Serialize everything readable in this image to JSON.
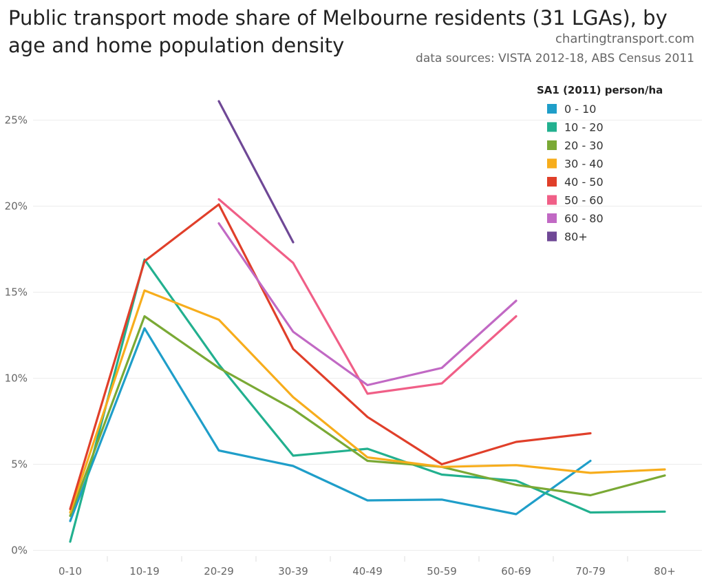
{
  "header": {
    "title": "Public transport mode share of Melbourne residents (31 LGAs), by age and home population density",
    "site": "chartingtransport.com",
    "sources": "data sources: VISTA 2012-18, ABS Census 2011"
  },
  "chart_data": {
    "type": "line",
    "title": "Public transport mode share of Melbourne residents (31 LGAs), by age and home population density",
    "xlabel": "",
    "ylabel": "",
    "categories": [
      "0-10",
      "10-19",
      "20-29",
      "30-39",
      "40-49",
      "50-59",
      "60-69",
      "70-79",
      "80+"
    ],
    "yticks": [
      0,
      5,
      10,
      15,
      20,
      25
    ],
    "ytick_labels": [
      "0%",
      "5%",
      "10%",
      "15%",
      "20%",
      "25%"
    ],
    "ylim": [
      -0.5,
      27.5
    ],
    "grid": true,
    "legend_title": "SA1 (2011) person/ha",
    "legend_position": "top-right",
    "series": [
      {
        "name": "0 - 10",
        "color": "#1f9ec9",
        "values": [
          1.7,
          12.9,
          5.8,
          4.9,
          2.9,
          2.95,
          2.1,
          5.2,
          null
        ]
      },
      {
        "name": "10 - 20",
        "color": "#22b08f",
        "values": [
          0.5,
          16.9,
          10.8,
          5.5,
          5.9,
          4.4,
          4.05,
          2.2,
          2.25
        ]
      },
      {
        "name": "20 - 30",
        "color": "#7aa935",
        "values": [
          2.0,
          13.6,
          10.6,
          8.2,
          5.2,
          4.85,
          3.8,
          3.2,
          4.35
        ]
      },
      {
        "name": "30 - 40",
        "color": "#f7ad1c",
        "values": [
          2.2,
          15.1,
          13.4,
          8.9,
          5.4,
          4.85,
          4.95,
          4.5,
          4.7
        ]
      },
      {
        "name": "40 - 50",
        "color": "#e03f2a",
        "values": [
          2.4,
          16.8,
          20.1,
          11.7,
          7.75,
          5.0,
          6.3,
          6.8,
          null
        ]
      },
      {
        "name": "50 - 60",
        "color": "#f05f87",
        "values": [
          null,
          null,
          20.4,
          16.7,
          9.1,
          9.7,
          13.6,
          null,
          null
        ]
      },
      {
        "name": "60 - 80",
        "color": "#c169c4",
        "values": [
          null,
          null,
          19.0,
          12.7,
          9.6,
          10.6,
          14.5,
          null,
          null
        ]
      },
      {
        "name": "80+",
        "color": "#6f4896",
        "values": [
          null,
          null,
          26.1,
          17.9,
          null,
          null,
          null,
          null,
          null
        ]
      }
    ]
  }
}
